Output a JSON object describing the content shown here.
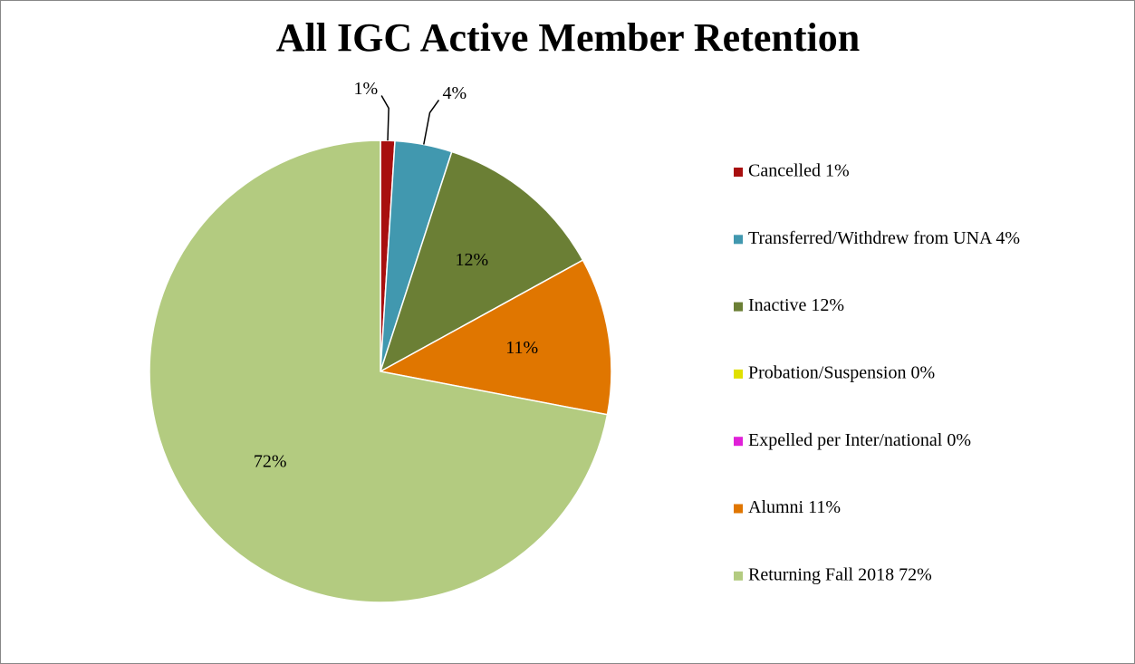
{
  "chart_data": {
    "type": "pie",
    "title": "All IGC Active Member Retention",
    "categories": [
      "Cancelled 1%",
      "Transferred/Withdrew from UNA 4%",
      "Inactive 12%",
      "Probation/Suspension 0%",
      "Expelled per Inter/national 0%",
      "Alumni 11%",
      "Returning Fall 2018 72%"
    ],
    "values": [
      1,
      4,
      12,
      0,
      0,
      11,
      72
    ],
    "value_labels": [
      "1%",
      "4%",
      "12%",
      null,
      null,
      "11%",
      "72%"
    ],
    "colors": [
      "#a80f0f",
      "#4198af",
      "#6b7f35",
      "#e0e000",
      "#e020d8",
      "#e07600",
      "#b3cb80"
    ],
    "legend": "right"
  }
}
